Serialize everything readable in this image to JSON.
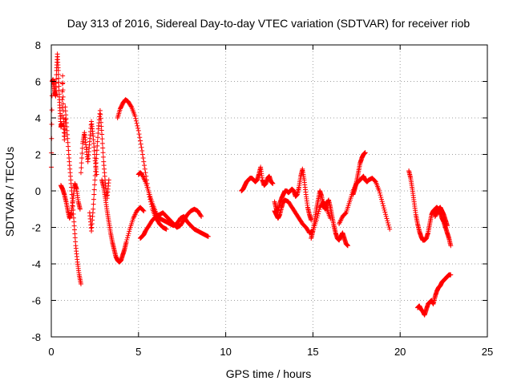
{
  "chart_data": {
    "type": "scatter",
    "title": "Day 313 of 2016, Sidereal Day-to-day VTEC variation (SDTVAR) for receiver riob",
    "xlabel": "GPS time / hours",
    "ylabel": "SDTVAR / TECUs",
    "xlim": [
      0,
      25
    ],
    "ylim": [
      -8,
      8
    ],
    "xticks": [
      0,
      5,
      10,
      15,
      20,
      25
    ],
    "yticks": [
      -8,
      -6,
      -4,
      -2,
      0,
      2,
      4,
      6,
      8
    ],
    "xtick_labels": [
      "0",
      "5",
      "10",
      "15",
      "20",
      "25"
    ],
    "ytick_labels": [
      "-8",
      "-6",
      "-4",
      "-2",
      "0",
      "2",
      "4",
      "6",
      "8"
    ],
    "grid": true,
    "marker": "+",
    "series_color": "#ff0000",
    "series": [
      {
        "name": "s1",
        "x": [
          0.0,
          0.05,
          0.1,
          0.15,
          0.2,
          0.25,
          0.3,
          0.35,
          0.4,
          0.45,
          0.5,
          0.55,
          0.6,
          0.65,
          0.7,
          0.75,
          0.8
        ],
        "y": [
          1.3,
          6.0,
          6.1,
          5.8,
          5.4,
          5.2,
          6.6,
          7.5,
          6.6,
          5.3,
          4.4,
          3.5,
          3.7,
          6.3,
          4.0,
          2.8,
          3.9
        ]
      },
      {
        "name": "s2",
        "x": [
          0.55,
          0.65,
          0.75,
          0.85,
          0.95,
          1.05,
          1.15,
          1.25,
          1.35,
          1.45,
          1.55,
          1.65
        ],
        "y": [
          0.3,
          0.1,
          -0.2,
          -0.6,
          -1.1,
          -1.5,
          -1.2,
          -0.4,
          0.4,
          0.1,
          -0.6,
          -1.0
        ]
      },
      {
        "name": "s3",
        "x": [
          0.8,
          0.9,
          1.0,
          1.1,
          1.2,
          1.3,
          1.4,
          1.5,
          1.6,
          1.7
        ],
        "y": [
          4.6,
          3.3,
          2.0,
          0.8,
          -0.4,
          -1.7,
          -3.0,
          -3.9,
          -4.6,
          -5.1
        ]
      },
      {
        "name": "s4",
        "x": [
          1.7,
          1.8,
          1.9,
          2.0,
          2.1,
          2.2,
          2.3,
          2.4,
          2.5,
          2.6
        ],
        "y": [
          1.0,
          2.6,
          3.2,
          2.4,
          1.6,
          2.7,
          3.8,
          3.0,
          1.8,
          0.9
        ]
      },
      {
        "name": "s5",
        "x": [
          2.2,
          2.3,
          2.4,
          2.5,
          2.6,
          2.7,
          2.8,
          2.9,
          3.0,
          3.1,
          3.2,
          3.3
        ],
        "y": [
          -1.2,
          -2.2,
          -1.0,
          0.6,
          2.0,
          3.4,
          4.4,
          3.1,
          1.6,
          0.4,
          -0.4,
          0.6
        ]
      },
      {
        "name": "s6",
        "x": [
          2.9,
          3.0,
          3.1,
          3.2,
          3.3,
          3.4,
          3.5,
          3.6,
          3.7,
          3.8,
          3.9,
          4.0,
          4.1,
          4.2,
          4.3,
          4.5,
          4.7,
          4.9,
          5.1,
          5.3
        ],
        "y": [
          0.6,
          0.2,
          -0.4,
          -1.1,
          -1.7,
          -2.3,
          -2.8,
          -3.2,
          -3.6,
          -3.8,
          -3.9,
          -3.8,
          -3.5,
          -3.2,
          -2.8,
          -2.1,
          -1.5,
          -1.1,
          -0.9,
          -1.1
        ]
      },
      {
        "name": "s7",
        "x": [
          3.8,
          3.95,
          4.1,
          4.25,
          4.4,
          4.6,
          4.8,
          5.0,
          5.2,
          5.4,
          5.6,
          5.8,
          6.0,
          6.2,
          6.4,
          6.6
        ],
        "y": [
          4.0,
          4.5,
          4.8,
          5.0,
          4.9,
          4.6,
          4.1,
          3.3,
          2.2,
          1.0,
          -0.2,
          -1.0,
          -1.5,
          -1.8,
          -2.0,
          -2.1
        ]
      },
      {
        "name": "s8",
        "x": [
          5.0,
          5.1,
          5.2,
          5.4,
          5.6,
          5.8,
          6.0,
          6.2,
          6.4,
          6.6,
          6.8,
          7.0,
          7.2,
          7.4,
          7.6,
          7.8,
          8.0,
          8.2,
          8.4,
          8.6,
          8.8,
          9.0
        ],
        "y": [
          0.9,
          1.0,
          0.9,
          0.5,
          -0.1,
          -0.7,
          -1.2,
          -1.5,
          -1.6,
          -1.7,
          -1.8,
          -1.9,
          -1.8,
          -1.5,
          -1.4,
          -1.7,
          -1.9,
          -2.1,
          -2.2,
          -2.3,
          -2.4,
          -2.5
        ]
      },
      {
        "name": "s9",
        "x": [
          5.1,
          5.2,
          5.3,
          5.4,
          5.6,
          5.8,
          6.0,
          6.2,
          6.4,
          6.6,
          6.8,
          7.0,
          7.2,
          7.4,
          7.6,
          7.8,
          8.0,
          8.2,
          8.4,
          8.6
        ],
        "y": [
          -2.6,
          -2.5,
          -2.4,
          -2.2,
          -1.9,
          -1.6,
          -1.4,
          -1.3,
          -1.2,
          -1.4,
          -1.6,
          -1.8,
          -2.0,
          -1.9,
          -1.6,
          -1.3,
          -1.1,
          -1.0,
          -1.1,
          -1.4
        ]
      },
      {
        "name": "s10",
        "x": [
          10.9,
          11.0,
          11.1,
          11.2,
          11.3,
          11.4,
          11.5,
          11.6,
          11.7,
          11.8,
          11.9,
          12.0,
          12.1,
          12.2,
          12.3,
          12.4,
          12.5,
          12.6,
          12.7
        ],
        "y": [
          0.0,
          0.1,
          0.3,
          0.5,
          0.6,
          0.7,
          0.7,
          0.6,
          0.5,
          0.6,
          0.9,
          1.3,
          0.6,
          0.3,
          0.4,
          0.7,
          0.8,
          0.5,
          0.4
        ]
      },
      {
        "name": "s11",
        "x": [
          12.8,
          12.9,
          13.0,
          13.1,
          13.2,
          13.3,
          13.4,
          13.5,
          13.6,
          13.7,
          13.8,
          13.9,
          14.0,
          14.1,
          14.2,
          14.3,
          14.4,
          14.5,
          14.6,
          14.7,
          14.8,
          14.9
        ],
        "y": [
          -0.6,
          -1.0,
          -1.1,
          -0.7,
          -0.4,
          -0.2,
          0.0,
          0.0,
          -0.1,
          0.0,
          0.1,
          0.0,
          -0.3,
          -0.2,
          0.2,
          0.8,
          1.2,
          0.6,
          -0.2,
          -0.9,
          -1.3,
          -1.6
        ]
      },
      {
        "name": "s12",
        "x": [
          12.8,
          12.9,
          13.0,
          13.1,
          13.2,
          13.3,
          13.4,
          13.6,
          13.8,
          14.0,
          14.2,
          14.4,
          14.6,
          14.8,
          15.0,
          15.2,
          15.4,
          15.6,
          15.8,
          16.0
        ],
        "y": [
          -1.1,
          -1.3,
          -1.5,
          -1.3,
          -0.9,
          -0.6,
          -0.5,
          -0.6,
          -0.9,
          -1.2,
          -1.5,
          -1.8,
          -2.0,
          -2.3,
          -2.2,
          -1.6,
          -0.9,
          -0.6,
          -1.0,
          -1.5
        ]
      },
      {
        "name": "s13",
        "x": [
          14.9,
          15.0,
          15.1,
          15.2,
          15.3,
          15.4,
          15.5,
          15.6,
          15.7,
          15.8,
          15.9,
          16.0,
          16.1,
          16.2,
          16.3,
          16.4,
          16.5,
          16.6,
          16.7,
          16.8,
          16.9,
          17.0
        ],
        "y": [
          -2.6,
          -2.2,
          -1.6,
          -1.0,
          -0.5,
          0.0,
          -0.3,
          -0.8,
          -1.0,
          -0.7,
          -0.5,
          -0.9,
          -1.4,
          -1.9,
          -2.3,
          -2.6,
          -2.7,
          -2.5,
          -2.3,
          -2.6,
          -2.9,
          -3.0
        ]
      },
      {
        "name": "s14",
        "x": [
          16.5,
          16.7,
          16.9,
          17.1,
          17.3,
          17.5,
          17.7,
          17.8,
          17.9,
          18.0,
          18.1,
          18.2,
          18.4,
          18.6,
          18.8,
          19.0,
          19.2,
          19.4
        ],
        "y": [
          -1.8,
          -1.4,
          -1.2,
          -0.6,
          0.0,
          0.4,
          0.6,
          0.7,
          0.8,
          0.6,
          0.5,
          0.6,
          0.7,
          0.5,
          0.0,
          -0.7,
          -1.4,
          -2.1
        ]
      },
      {
        "name": "s15",
        "x": [
          17.3,
          17.4,
          17.5,
          17.6,
          17.7,
          17.8,
          17.9,
          18.0
        ],
        "y": [
          -0.2,
          0.1,
          0.5,
          1.0,
          1.5,
          1.8,
          2.0,
          2.1
        ]
      },
      {
        "name": "s16",
        "x": [
          20.5,
          20.6,
          20.7,
          20.8,
          20.9,
          21.0,
          21.1,
          21.2,
          21.3,
          21.4,
          21.5,
          21.6,
          21.7,
          21.8,
          21.9,
          22.0,
          22.1,
          22.2,
          22.3,
          22.4,
          22.5,
          22.6,
          22.7,
          22.8,
          22.9
        ],
        "y": [
          1.1,
          0.7,
          0.1,
          -0.6,
          -1.3,
          -1.8,
          -2.2,
          -2.5,
          -2.7,
          -2.7,
          -2.6,
          -2.3,
          -1.8,
          -1.3,
          -1.1,
          -1.0,
          -0.9,
          -1.0,
          -1.2,
          -1.5,
          -1.7,
          -2.0,
          -2.3,
          -2.6,
          -3.0
        ]
      },
      {
        "name": "s17",
        "x": [
          21.0,
          21.1,
          21.2,
          21.3,
          21.4,
          21.5,
          21.6,
          21.7,
          21.8,
          21.9,
          22.0,
          22.1,
          22.2,
          22.3,
          22.4,
          22.5,
          22.6,
          22.7,
          22.8,
          22.9
        ],
        "y": [
          -6.4,
          -6.3,
          -6.5,
          -6.6,
          -6.8,
          -6.5,
          -6.2,
          -6.1,
          -6.0,
          -6.2,
          -5.8,
          -5.5,
          -5.3,
          -5.2,
          -5.0,
          -4.9,
          -4.8,
          -4.7,
          -4.6,
          -4.6
        ]
      },
      {
        "name": "s18",
        "x": [
          22.0,
          22.1,
          22.2,
          22.3,
          22.4,
          22.5,
          22.6,
          22.7
        ],
        "y": [
          -1.4,
          -1.2,
          -1.0,
          -0.9,
          -1.1,
          -1.3,
          -1.6,
          -1.9
        ]
      }
    ]
  }
}
